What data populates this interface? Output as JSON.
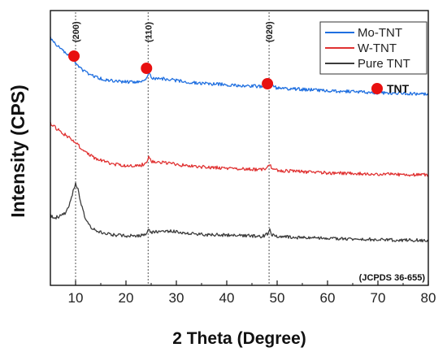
{
  "chart_data": {
    "type": "line",
    "xlabel": "2 Theta (Degree)",
    "ylabel": "Intensity (CPS)",
    "xlim": [
      5,
      80
    ],
    "xticks": [
      "10",
      "20",
      "30",
      "40",
      "50",
      "60",
      "70",
      "80"
    ],
    "y_ticks_shown": false,
    "legend_position": "top-right",
    "series": [
      {
        "name": "Mo-TNT",
        "color": "#1f6fe0",
        "x": [
          5,
          6,
          7,
          8,
          9,
          10,
          11,
          12,
          13,
          14,
          16,
          18,
          20,
          22,
          23,
          24,
          24.5,
          25,
          26,
          27,
          28,
          30,
          32,
          35,
          40,
          45,
          47,
          48,
          48.5,
          49,
          50,
          55,
          60,
          65,
          70,
          75,
          80
        ],
        "values": [
          1.0,
          0.92,
          0.85,
          0.78,
          0.72,
          0.64,
          0.56,
          0.5,
          0.46,
          0.43,
          0.39,
          0.37,
          0.36,
          0.36,
          0.37,
          0.4,
          0.5,
          0.43,
          0.4,
          0.41,
          0.4,
          0.38,
          0.36,
          0.34,
          0.32,
          0.3,
          0.29,
          0.31,
          0.38,
          0.3,
          0.27,
          0.25,
          0.23,
          0.22,
          0.2,
          0.19,
          0.18
        ]
      },
      {
        "name": "W-TNT",
        "color": "#e03232",
        "x": [
          5,
          6,
          7,
          8,
          9,
          10,
          11,
          12,
          13,
          14,
          16,
          18,
          20,
          22,
          23,
          24,
          24.5,
          25,
          26,
          27,
          28,
          30,
          32,
          35,
          40,
          45,
          47,
          48,
          48.5,
          49,
          50,
          55,
          60,
          65,
          70,
          75,
          80
        ],
        "values": [
          1.0,
          0.93,
          0.87,
          0.81,
          0.75,
          0.68,
          0.6,
          0.53,
          0.47,
          0.42,
          0.36,
          0.32,
          0.3,
          0.3,
          0.31,
          0.34,
          0.44,
          0.37,
          0.35,
          0.36,
          0.35,
          0.32,
          0.3,
          0.28,
          0.26,
          0.24,
          0.23,
          0.26,
          0.34,
          0.25,
          0.22,
          0.2,
          0.18,
          0.17,
          0.16,
          0.15,
          0.15
        ]
      },
      {
        "name": "Pure TNT",
        "color": "#3c3c3c",
        "x": [
          5,
          6,
          7,
          8,
          8.5,
          9,
          9.5,
          10,
          10.5,
          11,
          12,
          13,
          14,
          16,
          18,
          20,
          22,
          23,
          24,
          24.5,
          25,
          26,
          27,
          28,
          30,
          32,
          35,
          40,
          45,
          47,
          48,
          48.5,
          49,
          50,
          55,
          60,
          65,
          70,
          75,
          80
        ],
        "values": [
          0.5,
          0.47,
          0.5,
          0.55,
          0.62,
          0.75,
          0.88,
          1.0,
          0.9,
          0.7,
          0.45,
          0.33,
          0.27,
          0.22,
          0.2,
          0.19,
          0.19,
          0.2,
          0.22,
          0.3,
          0.24,
          0.25,
          0.26,
          0.27,
          0.25,
          0.23,
          0.21,
          0.2,
          0.19,
          0.18,
          0.21,
          0.3,
          0.2,
          0.18,
          0.16,
          0.15,
          0.14,
          0.13,
          0.12,
          0.12
        ]
      }
    ],
    "reference_lines": [
      {
        "x": 10,
        "label": "(200)"
      },
      {
        "x": 24.4,
        "label": "(110)"
      },
      {
        "x": 48.4,
        "label": "(020)"
      }
    ],
    "peak_markers": [
      {
        "x": 10,
        "symbol": "red-dot"
      },
      {
        "x": 24.4,
        "symbol": "red-dot"
      },
      {
        "x": 48.4,
        "symbol": "red-dot"
      }
    ],
    "marker_key": {
      "symbol": "red-dot",
      "label": "TNT",
      "color": "#e81010"
    },
    "annotation": "(JCPDS 36-655)"
  }
}
